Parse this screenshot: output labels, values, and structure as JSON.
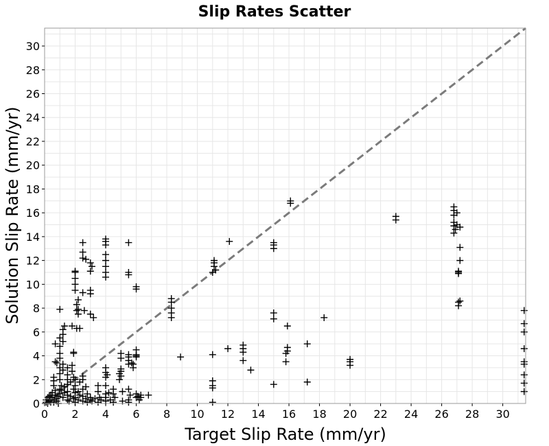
{
  "chart_data": {
    "type": "scatter",
    "title": "Slip Rates Scatter",
    "xlabel": "Target Slip Rate (mm/yr)",
    "ylabel": "Solution Slip Rate (mm/yr)",
    "xlim": [
      0,
      31.5
    ],
    "ylim": [
      0,
      31.5
    ],
    "xticks": [
      0,
      2,
      4,
      6,
      8,
      10,
      12,
      14,
      16,
      18,
      20,
      22,
      24,
      26,
      28,
      30
    ],
    "yticks": [
      0,
      2,
      4,
      6,
      8,
      10,
      12,
      14,
      16,
      18,
      20,
      22,
      24,
      26,
      28,
      30
    ],
    "grid": true,
    "reference_line": {
      "style": "dashed",
      "color": "#7b7b7b",
      "from": [
        0,
        0
      ],
      "to": [
        31.5,
        31.5
      ]
    },
    "marker": "plus",
    "marker_color": "#000000",
    "series": [
      {
        "points": [
          [
            0.1,
            0.1
          ],
          [
            0.1,
            0.3
          ],
          [
            0.2,
            0.5
          ],
          [
            0.2,
            0.0
          ],
          [
            0.3,
            0.6
          ],
          [
            0.3,
            0.2
          ],
          [
            0.4,
            0.7
          ],
          [
            0.4,
            0.1
          ],
          [
            0.5,
            0.5
          ],
          [
            0.5,
            0.9
          ],
          [
            0.6,
            0.3
          ],
          [
            0.6,
            0.1
          ],
          [
            0.7,
            0.7
          ],
          [
            0.7,
            1.1
          ],
          [
            0.8,
            0.2
          ],
          [
            0.8,
            0.4
          ],
          [
            0.9,
            0.6
          ],
          [
            0.9,
            0.0
          ],
          [
            0.6,
            1.5
          ],
          [
            0.6,
            1.9
          ],
          [
            0.6,
            2.2
          ],
          [
            0.7,
            3.5
          ],
          [
            0.7,
            5.0
          ],
          [
            0.8,
            3.4
          ],
          [
            1.0,
            0.8
          ],
          [
            1.0,
            1.2
          ],
          [
            1.0,
            2.0
          ],
          [
            1.0,
            2.5
          ],
          [
            1.0,
            3.0
          ],
          [
            1.0,
            3.8
          ],
          [
            1.0,
            4.2
          ],
          [
            1.0,
            4.8
          ],
          [
            1.0,
            5.5
          ],
          [
            1.0,
            7.9
          ],
          [
            1.1,
            1.1
          ],
          [
            1.1,
            1.5
          ],
          [
            1.2,
            0.5
          ],
          [
            1.2,
            2.8
          ],
          [
            1.2,
            3.3
          ],
          [
            1.2,
            5.2
          ],
          [
            1.2,
            5.8
          ],
          [
            1.2,
            6.2
          ],
          [
            1.3,
            0.9
          ],
          [
            1.3,
            1.4
          ],
          [
            1.3,
            6.5
          ],
          [
            1.5,
            0.3
          ],
          [
            1.5,
            0.7
          ],
          [
            1.5,
            1.0
          ],
          [
            1.5,
            1.6
          ],
          [
            1.5,
            2.0
          ],
          [
            1.5,
            2.4
          ],
          [
            1.5,
            3.0
          ],
          [
            1.6,
            0.2
          ],
          [
            1.7,
            0.6
          ],
          [
            1.7,
            1.8
          ],
          [
            1.8,
            2.7
          ],
          [
            1.8,
            3.2
          ],
          [
            1.9,
            0.4
          ],
          [
            1.9,
            1.2
          ],
          [
            1.9,
            2.2
          ],
          [
            1.8,
            6.5
          ],
          [
            1.9,
            4.3
          ],
          [
            1.9,
            4.2
          ],
          [
            2.0,
            0.1
          ],
          [
            2.0,
            0.5
          ],
          [
            2.0,
            0.9
          ],
          [
            2.0,
            1.5
          ],
          [
            2.0,
            2.0
          ],
          [
            2.0,
            9.5
          ],
          [
            2.0,
            10.0
          ],
          [
            2.0,
            10.5
          ],
          [
            2.0,
            11.0
          ],
          [
            2.0,
            11.1
          ],
          [
            2.1,
            6.3
          ],
          [
            2.1,
            7.8
          ],
          [
            2.1,
            8.3
          ],
          [
            2.2,
            0.3
          ],
          [
            2.2,
            1.0
          ],
          [
            2.2,
            7.5
          ],
          [
            2.2,
            7.9
          ],
          [
            2.2,
            8.7
          ],
          [
            2.3,
            6.3
          ],
          [
            2.3,
            0.7
          ],
          [
            2.3,
            1.8
          ],
          [
            2.5,
            0.2
          ],
          [
            2.5,
            0.6
          ],
          [
            2.5,
            1.2
          ],
          [
            2.5,
            2.0
          ],
          [
            2.5,
            2.3
          ],
          [
            2.5,
            9.3
          ],
          [
            2.5,
            12.2
          ],
          [
            2.5,
            12.7
          ],
          [
            2.5,
            13.5
          ],
          [
            2.6,
            7.8
          ],
          [
            2.7,
            12.1
          ],
          [
            2.7,
            0.4
          ],
          [
            2.7,
            1.4
          ],
          [
            2.8,
            0.1
          ],
          [
            2.8,
            0.8
          ],
          [
            3.0,
            0.3
          ],
          [
            3.0,
            0.5
          ],
          [
            3.0,
            9.2
          ],
          [
            3.0,
            9.5
          ],
          [
            3.0,
            11.1
          ],
          [
            3.0,
            11.8
          ],
          [
            3.0,
            7.5
          ],
          [
            3.1,
            0.2
          ],
          [
            3.1,
            11.5
          ],
          [
            3.2,
            7.2
          ],
          [
            3.3,
            0.4
          ],
          [
            3.5,
            0.1
          ],
          [
            3.5,
            1.0
          ],
          [
            3.5,
            1.5
          ],
          [
            3.6,
            0.5
          ],
          [
            3.7,
            0.3
          ],
          [
            4.0,
            0.2
          ],
          [
            4.0,
            0.5
          ],
          [
            4.0,
            0.8
          ],
          [
            4.0,
            1.5
          ],
          [
            4.0,
            2.2
          ],
          [
            4.0,
            2.6
          ],
          [
            4.0,
            3.0
          ],
          [
            4.0,
            10.6
          ],
          [
            4.0,
            11.0
          ],
          [
            4.0,
            11.5
          ],
          [
            4.0,
            12.0
          ],
          [
            4.0,
            12.5
          ],
          [
            4.0,
            13.3
          ],
          [
            4.0,
            13.6
          ],
          [
            4.0,
            13.8
          ],
          [
            4.1,
            2.4
          ],
          [
            4.2,
            0.9
          ],
          [
            4.3,
            0.3
          ],
          [
            4.5,
            0.1
          ],
          [
            4.5,
            0.8
          ],
          [
            4.5,
            1.2
          ],
          [
            4.6,
            0.5
          ],
          [
            4.9,
            2.0
          ],
          [
            4.9,
            2.5
          ],
          [
            5.0,
            2.3
          ],
          [
            5.0,
            2.7
          ],
          [
            5.0,
            2.9
          ],
          [
            5.0,
            3.8
          ],
          [
            5.0,
            4.2
          ],
          [
            5.1,
            0.2
          ],
          [
            5.1,
            1.0
          ],
          [
            5.5,
            0.1
          ],
          [
            5.5,
            0.3
          ],
          [
            5.5,
            1.2
          ],
          [
            5.5,
            3.3
          ],
          [
            5.5,
            3.6
          ],
          [
            5.5,
            3.9
          ],
          [
            5.5,
            4.1
          ],
          [
            5.5,
            10.8
          ],
          [
            5.5,
            11.0
          ],
          [
            5.5,
            13.5
          ],
          [
            5.6,
            0.7
          ],
          [
            5.7,
            3.4
          ],
          [
            5.8,
            3.3
          ],
          [
            5.8,
            3.0
          ],
          [
            6.0,
            0.5
          ],
          [
            6.0,
            0.8
          ],
          [
            6.0,
            3.9
          ],
          [
            6.0,
            4.0
          ],
          [
            6.0,
            4.1
          ],
          [
            6.0,
            4.5
          ],
          [
            6.0,
            9.6
          ],
          [
            6.0,
            9.8
          ],
          [
            6.1,
            0.6
          ],
          [
            6.2,
            0.3
          ],
          [
            6.3,
            0.5
          ],
          [
            6.3,
            0.7
          ],
          [
            6.8,
            0.7
          ],
          [
            8.3,
            7.2
          ],
          [
            8.3,
            7.6
          ],
          [
            8.3,
            8.0
          ],
          [
            8.3,
            8.5
          ],
          [
            8.3,
            8.8
          ],
          [
            8.9,
            3.9
          ],
          [
            11.0,
            4.1
          ],
          [
            11.0,
            1.3
          ],
          [
            11.0,
            1.5
          ],
          [
            11.0,
            1.9
          ],
          [
            11.0,
            0.1
          ],
          [
            11.0,
            11.0
          ],
          [
            11.1,
            11.5
          ],
          [
            11.1,
            11.8
          ],
          [
            11.1,
            12.0
          ],
          [
            11.2,
            11.2
          ],
          [
            12.0,
            4.6
          ],
          [
            12.1,
            13.6
          ],
          [
            13.0,
            3.6
          ],
          [
            13.0,
            4.3
          ],
          [
            13.0,
            4.6
          ],
          [
            13.0,
            4.9
          ],
          [
            13.5,
            2.8
          ],
          [
            15.0,
            13.3
          ],
          [
            15.0,
            13.0
          ],
          [
            15.0,
            13.5
          ],
          [
            15.0,
            7.6
          ],
          [
            15.0,
            7.1
          ],
          [
            15.0,
            1.6
          ],
          [
            15.8,
            3.5
          ],
          [
            15.8,
            4.2
          ],
          [
            15.9,
            4.4
          ],
          [
            15.9,
            4.7
          ],
          [
            15.9,
            6.5
          ],
          [
            16.1,
            16.8
          ],
          [
            16.1,
            17.0
          ],
          [
            17.2,
            5.0
          ],
          [
            17.2,
            1.8
          ],
          [
            18.3,
            7.2
          ],
          [
            20.0,
            3.2
          ],
          [
            20.0,
            3.5
          ],
          [
            20.0,
            3.7
          ],
          [
            23.0,
            15.4
          ],
          [
            23.0,
            15.7
          ],
          [
            26.8,
            16.5
          ],
          [
            26.8,
            16.2
          ],
          [
            26.8,
            15.8
          ],
          [
            26.8,
            15.2
          ],
          [
            26.8,
            14.9
          ],
          [
            26.8,
            14.3
          ],
          [
            26.9,
            14.6
          ],
          [
            27.0,
            16.0
          ],
          [
            27.0,
            15.0
          ],
          [
            27.1,
            11.1
          ],
          [
            27.1,
            10.9
          ],
          [
            27.1,
            11.0
          ],
          [
            27.2,
            13.1
          ],
          [
            27.2,
            12.0
          ],
          [
            27.1,
            8.5
          ],
          [
            27.1,
            8.2
          ],
          [
            27.2,
            8.6
          ],
          [
            27.2,
            14.8
          ],
          [
            31.4,
            7.8
          ],
          [
            31.4,
            6.7
          ],
          [
            31.4,
            6.0
          ],
          [
            31.4,
            4.6
          ],
          [
            31.4,
            3.5
          ],
          [
            31.4,
            3.3
          ],
          [
            31.4,
            2.4
          ],
          [
            31.4,
            1.7
          ],
          [
            31.4,
            1.0
          ]
        ]
      }
    ]
  }
}
